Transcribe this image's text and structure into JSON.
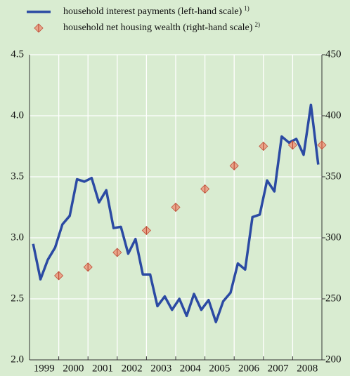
{
  "chart_data": {
    "type": "line",
    "series": [
      {
        "name": "household interest payments (left-hand scale)",
        "footnote": "1)",
        "color": "#2b4aa3",
        "axis": "y",
        "x": [
          1999.125,
          1999.375,
          1999.625,
          1999.875,
          2000.125,
          2000.375,
          2000.625,
          2000.875,
          2001.125,
          2001.375,
          2001.625,
          2001.875,
          2002.125,
          2002.375,
          2002.625,
          2002.875,
          2003.125,
          2003.375,
          2003.625,
          2003.875,
          2004.125,
          2004.375,
          2004.625,
          2004.875,
          2005.125,
          2005.375,
          2005.625,
          2005.875,
          2006.125,
          2006.375,
          2006.625,
          2006.875,
          2007.125,
          2007.375,
          2007.625,
          2007.875,
          2008.125,
          2008.375,
          2008.625,
          2008.875
        ],
        "values": [
          2.95,
          2.66,
          2.82,
          2.92,
          3.11,
          3.18,
          3.48,
          3.46,
          3.49,
          3.29,
          3.39,
          3.08,
          3.09,
          2.87,
          2.99,
          2.7,
          2.7,
          2.44,
          2.52,
          2.41,
          2.5,
          2.36,
          2.54,
          2.41,
          2.49,
          2.31,
          2.48,
          2.55,
          2.79,
          2.74,
          3.17,
          3.19,
          3.47,
          3.38,
          3.83,
          3.78,
          3.81,
          3.68,
          4.09,
          3.6
        ]
      },
      {
        "name": "household net housing wealth (right-hand scale)",
        "footnote": "2)",
        "color": "#e8a58a",
        "axis": "y2",
        "marker": "diamond",
        "x": [
          2000,
          2001,
          2002,
          2003,
          2004,
          2005,
          2006,
          2007,
          2008,
          2009
        ],
        "values": [
          269,
          276,
          288,
          306,
          325,
          340,
          359,
          375,
          376,
          376
        ]
      }
    ],
    "xlim": [
      1999,
      2009
    ],
    "xticks": [
      {
        "value": 1999,
        "label": "1999"
      },
      {
        "value": 2000,
        "label": "2000"
      },
      {
        "value": 2001,
        "label": "2001"
      },
      {
        "value": 2002,
        "label": "2002"
      },
      {
        "value": 2003,
        "label": "2003"
      },
      {
        "value": 2004,
        "label": "2004"
      },
      {
        "value": 2005,
        "label": "2005"
      },
      {
        "value": 2006,
        "label": "2006"
      },
      {
        "value": 2007,
        "label": "2007"
      },
      {
        "value": 2008,
        "label": "2008"
      }
    ],
    "ylim": [
      2.0,
      4.5
    ],
    "yticks": [
      {
        "value": 2.0,
        "label": "2.0"
      },
      2.5,
      {
        "value": 3.0,
        "label": "3.0"
      },
      3.5,
      {
        "value": 4.0,
        "label": "4.0"
      },
      4.5
    ],
    "y2lim": [
      200,
      450
    ],
    "y2ticks": [
      200,
      250,
      300,
      350,
      400,
      450
    ],
    "grid": true
  }
}
